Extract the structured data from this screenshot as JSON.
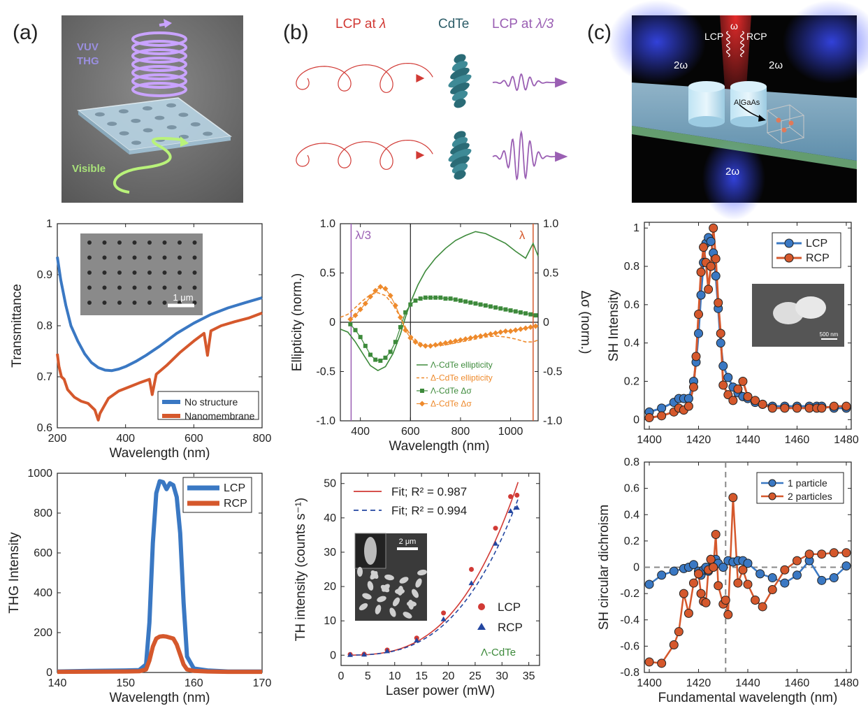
{
  "panel_labels": [
    "(a)",
    "(b)",
    "(c)"
  ],
  "schematic_a": {
    "label_top_1": "VUV",
    "label_top_2": "THG",
    "label_bottom": "Visible"
  },
  "schematic_b": {
    "title_left": "LCP at",
    "lambda": "λ",
    "title_mid": "CdTe",
    "title_right": "LCP at",
    "lambda3": "λ/3"
  },
  "schematic_c": {
    "omega": "ω",
    "lcp": "LCP",
    "rcp": "RCP",
    "two_omega": "2ω",
    "material": "AlGaAs"
  },
  "colors": {
    "blue": "#3a78c3",
    "orange": "#d5582c",
    "green": "#3d8a3b",
    "lightorange": "#ee8a2c",
    "red": "#d13a35",
    "navy": "#2346a0",
    "purple": "#9a5fb3"
  },
  "chart_data": [
    {
      "id": "transmittance",
      "type": "line",
      "xlabel": "Wavelength (nm)",
      "ylabel": "Transmittance",
      "xlim": [
        200,
        800
      ],
      "ylim": [
        0.6,
        1.0
      ],
      "xticks": [
        200,
        400,
        600,
        800
      ],
      "yticks": [
        0.6,
        0.7,
        0.8,
        0.9,
        1.0
      ],
      "ytick_labels": [
        "0.6",
        "0.7",
        "0.8",
        "0.9",
        "1"
      ],
      "inset_scale": "1 μm",
      "series": [
        {
          "name": "No structure",
          "x": [
            200,
            210,
            225,
            240,
            260,
            280,
            300,
            320,
            340,
            360,
            380,
            400,
            430,
            460,
            500,
            550,
            600,
            650,
            700,
            750,
            800
          ],
          "y": [
            0.935,
            0.89,
            0.84,
            0.8,
            0.77,
            0.745,
            0.728,
            0.718,
            0.713,
            0.712,
            0.715,
            0.72,
            0.73,
            0.742,
            0.76,
            0.785,
            0.805,
            0.822,
            0.835,
            0.845,
            0.855
          ]
        },
        {
          "name": "Nanomembrane",
          "x": [
            200,
            205,
            212,
            220,
            230,
            250,
            270,
            290,
            310,
            320,
            325,
            335,
            350,
            380,
            410,
            440,
            470,
            478,
            490,
            520,
            560,
            600,
            630,
            640,
            650,
            680,
            720,
            760,
            800
          ],
          "y": [
            0.745,
            0.72,
            0.7,
            0.695,
            0.675,
            0.66,
            0.652,
            0.648,
            0.635,
            0.615,
            0.628,
            0.64,
            0.658,
            0.672,
            0.68,
            0.688,
            0.695,
            0.665,
            0.705,
            0.722,
            0.748,
            0.77,
            0.785,
            0.742,
            0.79,
            0.8,
            0.808,
            0.815,
            0.825
          ]
        }
      ]
    },
    {
      "id": "thg",
      "type": "line",
      "xlabel": "Wavelength (nm)",
      "ylabel": "THG Intensity",
      "xlim": [
        140,
        170
      ],
      "ylim": [
        0,
        1000
      ],
      "xticks": [
        140,
        150,
        160,
        170
      ],
      "yticks": [
        0,
        200,
        400,
        600,
        800,
        1000
      ],
      "series": [
        {
          "name": "LCP",
          "x": [
            140,
            145,
            150,
            152,
            153,
            153.5,
            154,
            154.5,
            155,
            155.5,
            156,
            156.5,
            157,
            157.5,
            158,
            158.5,
            159,
            160,
            162,
            165,
            170
          ],
          "y": [
            5,
            8,
            10,
            12,
            40,
            250,
            650,
            900,
            960,
            955,
            920,
            950,
            940,
            880,
            700,
            350,
            80,
            20,
            10,
            5,
            5
          ]
        },
        {
          "name": "RCP",
          "x": [
            140,
            145,
            150,
            152,
            153,
            153.5,
            154,
            154.5,
            155,
            155.5,
            156,
            156.5,
            157,
            157.5,
            158,
            158.5,
            159,
            160,
            162,
            165,
            170
          ],
          "y": [
            3,
            4,
            5,
            6,
            15,
            60,
            130,
            170,
            180,
            182,
            180,
            175,
            170,
            140,
            90,
            40,
            15,
            8,
            5,
            3,
            3
          ]
        }
      ]
    },
    {
      "id": "ellipticity",
      "type": "line",
      "xlabel": "Wavelength (nm)",
      "ylabel": "Ellipticity (norm.)",
      "ylabel_right": "Δσ (norm.)",
      "xlim": [
        320,
        1110
      ],
      "ylim": [
        -1.0,
        1.0
      ],
      "xticks": [
        400,
        600,
        800,
        1000
      ],
      "yticks": [
        -1.0,
        -0.5,
        0,
        0.5,
        1.0
      ],
      "yticks_right": [
        -1.0,
        -0.5,
        0,
        0.5,
        1.0
      ],
      "marker_left_label": "λ/3",
      "marker_right_label": "λ",
      "marker_left_x": 363,
      "marker_right_x": 1090,
      "divider_x": 600,
      "series": [
        {
          "name": "Λ-CdTe ellipticity",
          "x": [
            320,
            350,
            380,
            410,
            440,
            470,
            500,
            530,
            560,
            580,
            600,
            630,
            660,
            700,
            740,
            780,
            820,
            860,
            900,
            940,
            980,
            1020,
            1060,
            1090,
            1110
          ],
          "y": [
            -0.07,
            -0.1,
            -0.2,
            -0.32,
            -0.44,
            -0.49,
            -0.45,
            -0.32,
            -0.12,
            0.05,
            0.2,
            0.38,
            0.52,
            0.65,
            0.75,
            0.83,
            0.88,
            0.92,
            0.9,
            0.85,
            0.8,
            0.72,
            0.65,
            0.8,
            0.67
          ]
        },
        {
          "name": "Δ-CdTe ellipticity",
          "x": [
            320,
            350,
            380,
            410,
            440,
            470,
            500,
            530,
            560,
            580,
            600,
            630,
            660,
            700,
            740,
            780,
            820,
            860,
            900,
            940,
            980,
            1020,
            1060,
            1090,
            1110
          ],
          "y": [
            0.05,
            0.08,
            0.15,
            0.22,
            0.28,
            0.3,
            0.27,
            0.18,
            0.05,
            -0.05,
            -0.13,
            -0.2,
            -0.23,
            -0.24,
            -0.23,
            -0.21,
            -0.19,
            -0.17,
            -0.15,
            -0.14,
            -0.15,
            -0.17,
            -0.2,
            -0.2,
            -0.18
          ]
        },
        {
          "name": "Λ-CdTe Δσ",
          "x": [
            360,
            380,
            400,
            420,
            440,
            460,
            480,
            500,
            520,
            540,
            560,
            580,
            600,
            620,
            640,
            660,
            680,
            700,
            720,
            740,
            760,
            780,
            800,
            820,
            840,
            860,
            880,
            900,
            920,
            940,
            960,
            980,
            1000,
            1020,
            1040,
            1060,
            1080,
            1100
          ],
          "y": [
            -0.02,
            -0.08,
            -0.15,
            -0.24,
            -0.33,
            -0.38,
            -0.39,
            -0.36,
            -0.3,
            -0.2,
            -0.05,
            0.1,
            0.18,
            0.22,
            0.24,
            0.25,
            0.25,
            0.25,
            0.25,
            0.24,
            0.24,
            0.23,
            0.22,
            0.21,
            0.2,
            0.19,
            0.18,
            0.17,
            0.16,
            0.15,
            0.14,
            0.13,
            0.12,
            0.11,
            0.1,
            0.09,
            0.08,
            0.07
          ]
        },
        {
          "name": "Δ-CdTe Δσ",
          "x": [
            360,
            380,
            400,
            420,
            440,
            460,
            480,
            500,
            520,
            540,
            560,
            580,
            600,
            620,
            640,
            660,
            680,
            700,
            720,
            740,
            760,
            780,
            800,
            820,
            840,
            860,
            880,
            900,
            920,
            940,
            960,
            980,
            1000,
            1020,
            1040,
            1060,
            1080,
            1100
          ],
          "y": [
            0.03,
            0.07,
            0.13,
            0.19,
            0.26,
            0.32,
            0.36,
            0.34,
            0.27,
            0.17,
            0.05,
            -0.08,
            -0.16,
            -0.2,
            -0.23,
            -0.24,
            -0.24,
            -0.23,
            -0.22,
            -0.21,
            -0.2,
            -0.19,
            -0.18,
            -0.17,
            -0.16,
            -0.15,
            -0.14,
            -0.13,
            -0.12,
            -0.11,
            -0.1,
            -0.09,
            -0.09,
            -0.08,
            -0.07,
            -0.06,
            -0.05,
            -0.04
          ]
        }
      ]
    },
    {
      "id": "th_power",
      "type": "scatter",
      "xlabel": "Laser power (mW)",
      "ylabel": "TH intensity (counts s⁻¹)",
      "xlim": [
        0,
        37
      ],
      "ylim": [
        -3,
        53
      ],
      "xticks": [
        0,
        5,
        10,
        15,
        20,
        25,
        30,
        35
      ],
      "yticks": [
        0,
        10,
        20,
        30,
        40,
        50
      ],
      "inset_scale": "2 μm",
      "sample_label": "Λ-CdTe",
      "fits": [
        {
          "name": "Fit; R² = 0.987",
          "exponent": 3,
          "coef": 0.001402
        },
        {
          "name": "Fit; R² = 0.994",
          "exponent": 3,
          "coef": 0.001266
        }
      ],
      "series": [
        {
          "name": "LCP",
          "x": [
            1.7,
            4.3,
            8.6,
            14.1,
            19.1,
            24.3,
            28.8,
            31.6,
            32.8
          ],
          "y": [
            0.2,
            0.3,
            1.5,
            5.0,
            12.3,
            25.0,
            37.0,
            46.2,
            46.6
          ]
        },
        {
          "name": "RCP",
          "x": [
            1.7,
            4.3,
            8.6,
            14.1,
            19.1,
            24.3,
            28.8,
            31.6,
            32.8
          ],
          "y": [
            0.1,
            0.2,
            1.2,
            4.3,
            10.5,
            21.0,
            32.5,
            42.0,
            43.0
          ]
        }
      ]
    },
    {
      "id": "sh_intensity",
      "type": "line",
      "xlabel": "",
      "ylabel": "SH Intensity",
      "xlim": [
        1398,
        1482
      ],
      "ylim": [
        -0.05,
        1.03
      ],
      "xticks": [
        1400,
        1420,
        1440,
        1460,
        1480
      ],
      "yticks": [
        0,
        0.2,
        0.4,
        0.6,
        0.8,
        1
      ],
      "inset_scale": "500 nm",
      "series": [
        {
          "name": "LCP",
          "x": [
            1400,
            1405,
            1410,
            1412,
            1414,
            1416,
            1418,
            1419,
            1420,
            1421,
            1422,
            1423,
            1424,
            1425,
            1426,
            1427,
            1428,
            1429,
            1430,
            1432,
            1434,
            1436,
            1438,
            1440,
            1443,
            1446,
            1450,
            1455,
            1460,
            1465,
            1468,
            1470,
            1475,
            1480
          ],
          "y": [
            0.04,
            0.06,
            0.09,
            0.11,
            0.11,
            0.11,
            0.2,
            0.3,
            0.45,
            0.65,
            0.82,
            0.92,
            0.95,
            0.93,
            0.87,
            0.75,
            0.58,
            0.4,
            0.28,
            0.22,
            0.17,
            0.14,
            0.12,
            0.11,
            0.09,
            0.08,
            0.07,
            0.07,
            0.07,
            0.07,
            0.07,
            0.07,
            0.06,
            0.06
          ]
        },
        {
          "name": "RCP",
          "x": [
            1400,
            1405,
            1410,
            1412,
            1414,
            1416,
            1418,
            1419,
            1420,
            1421,
            1422,
            1423,
            1424,
            1425,
            1426,
            1427,
            1428,
            1429,
            1430,
            1432,
            1434,
            1436,
            1438,
            1440,
            1443,
            1446,
            1450,
            1455,
            1460,
            1465,
            1468,
            1470,
            1475,
            1480
          ],
          "y": [
            0.01,
            0.02,
            0.04,
            0.06,
            0.05,
            0.07,
            0.17,
            0.33,
            0.55,
            0.77,
            0.9,
            0.82,
            0.68,
            0.8,
            1.0,
            0.84,
            0.61,
            0.45,
            0.18,
            0.13,
            0.1,
            0.16,
            0.2,
            0.12,
            0.1,
            0.08,
            0.06,
            0.06,
            0.06,
            0.06,
            0.06,
            0.06,
            0.07,
            0.07
          ]
        }
      ]
    },
    {
      "id": "sh_cd",
      "type": "line",
      "xlabel": "Fundamental wavelength (nm)",
      "ylabel": "SH circular dichroism",
      "xlim": [
        1398,
        1482
      ],
      "ylim": [
        -0.8,
        0.8
      ],
      "xticks": [
        1400,
        1420,
        1440,
        1460,
        1480
      ],
      "yticks": [
        -0.8,
        -0.6,
        -0.4,
        -0.2,
        0,
        0.2,
        0.4,
        0.6,
        0.8
      ],
      "vline_x": 1431,
      "series": [
        {
          "name": "1 particle",
          "x": [
            1400,
            1405,
            1410,
            1414,
            1416,
            1418,
            1420,
            1421,
            1422,
            1423,
            1424,
            1425,
            1426,
            1427,
            1428,
            1430,
            1432,
            1434,
            1436,
            1438,
            1440,
            1445,
            1450,
            1455,
            1460,
            1465,
            1470,
            1475,
            1480
          ],
          "y": [
            -0.13,
            -0.06,
            -0.03,
            -0.01,
            0.0,
            0.02,
            -0.03,
            -0.06,
            -0.02,
            0.0,
            -0.03,
            0.06,
            0.03,
            0.06,
            0.03,
            0.0,
            0.05,
            0.04,
            0.05,
            0.05,
            0.03,
            -0.05,
            -0.08,
            -0.12,
            -0.06,
            0.05,
            -0.1,
            -0.08,
            0.01
          ]
        },
        {
          "name": "2 particles",
          "x": [
            1400,
            1405,
            1410,
            1412,
            1414,
            1416,
            1418,
            1420,
            1421,
            1422,
            1423,
            1424,
            1425,
            1426,
            1427,
            1428,
            1430,
            1431,
            1432,
            1434,
            1436,
            1438,
            1440,
            1443,
            1446,
            1450,
            1455,
            1460,
            1465,
            1470,
            1475,
            1480
          ],
          "y": [
            -0.72,
            -0.73,
            -0.59,
            -0.49,
            -0.2,
            -0.35,
            -0.12,
            -0.05,
            -0.2,
            -0.26,
            -0.27,
            -0.02,
            0.06,
            0.0,
            0.25,
            -0.14,
            -0.28,
            -0.25,
            -0.36,
            0.53,
            -0.12,
            -0.02,
            -0.13,
            -0.25,
            -0.3,
            -0.17,
            -0.02,
            0.05,
            0.1,
            0.1,
            0.11,
            0.11
          ]
        }
      ]
    }
  ]
}
